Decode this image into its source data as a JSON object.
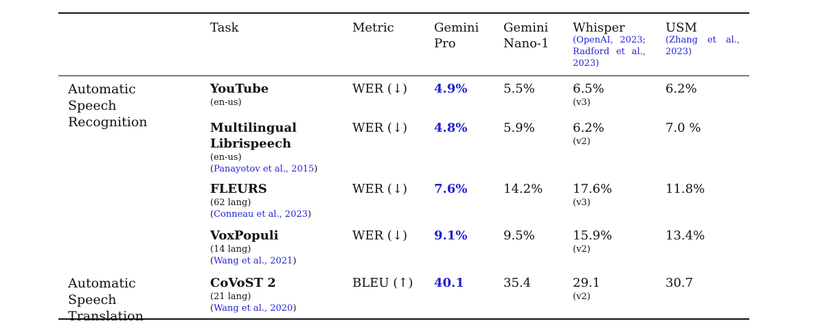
{
  "headers": {
    "task": "Task",
    "metric": "Metric",
    "gemini_pro": "Gemini Pro",
    "gemini_nano": "Gemini Nano-1",
    "whisper": "Whisper",
    "whisper_cite": "(OpenAI, 2023; Radford et al., 2023)",
    "usm": "USM",
    "usm_cite": "(Zhang et al., 2023)"
  },
  "categories": {
    "asr": "Automatic Speech Recognition",
    "ast": "Automatic Speech Translation"
  },
  "rows": [
    {
      "task": "YouTube",
      "sub": "(en-us)",
      "cite": "",
      "metric": "WER (↓)",
      "gemini_pro": "4.9%",
      "gemini_nano": "5.5%",
      "whisper": "6.5%",
      "whisper_ver": "(v3)",
      "usm": "6.2%"
    },
    {
      "task": "Multilingual Librispeech",
      "sub": "(en-us)",
      "cite": "Panayotov et al., 2015",
      "metric": "WER (↓)",
      "gemini_pro": "4.8%",
      "gemini_nano": "5.9%",
      "whisper": "6.2%",
      "whisper_ver": "(v2)",
      "usm": "7.0 %"
    },
    {
      "task": "FLEURS",
      "sub": "(62 lang)",
      "cite": "Conneau et al., 2023",
      "metric": "WER (↓)",
      "gemini_pro": "7.6%",
      "gemini_nano": "14.2%",
      "whisper": "17.6%",
      "whisper_ver": "(v3)",
      "usm": "11.8%"
    },
    {
      "task": "VoxPopuli",
      "sub": "(14 lang)",
      "cite": "Wang et al., 2021",
      "metric": "WER (↓)",
      "gemini_pro": "9.1%",
      "gemini_nano": "9.5%",
      "whisper": "15.9%",
      "whisper_ver": "(v2)",
      "usm": "13.4%"
    },
    {
      "task": "CoVoST 2",
      "sub": "(21 lang)",
      "cite": "Wang et al., 2020",
      "metric": "BLEU (↑)",
      "gemini_pro": "40.1",
      "gemini_nano": "35.4",
      "whisper": "29.1",
      "whisper_ver": "(v2)",
      "usm": "30.7"
    }
  ],
  "colors": {
    "accent_blue": "#1f1fd4",
    "text": "#111111",
    "rule": "#111111"
  }
}
